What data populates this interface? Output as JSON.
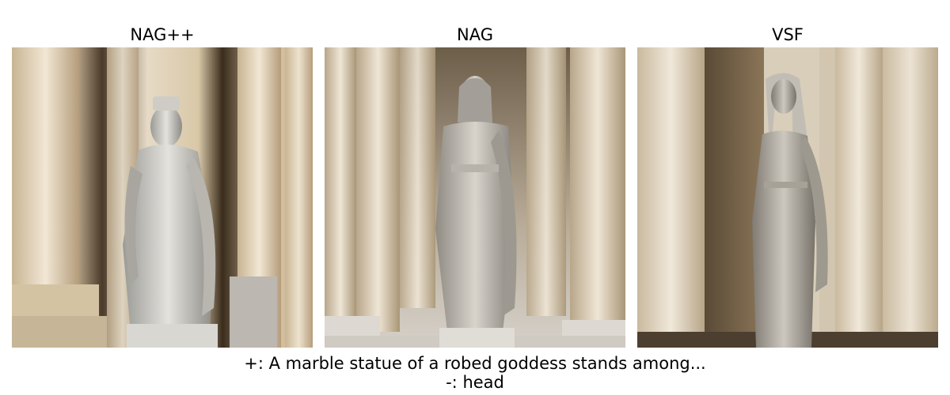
{
  "panels": [
    {
      "title": "NAG++"
    },
    {
      "title": "NAG"
    },
    {
      "title": "VSF"
    }
  ],
  "caption": {
    "positive": "+: A marble statue of a robed goddess stands among...",
    "negative": "-: head"
  }
}
